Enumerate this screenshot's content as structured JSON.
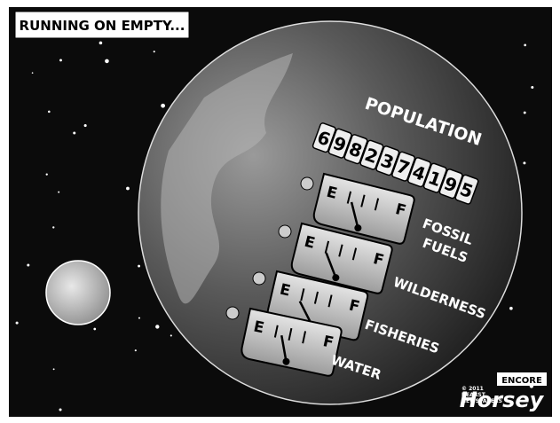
{
  "caption": "RUNNING ON EMPTY...",
  "population": {
    "label": "POPULATION",
    "digits": [
      "6",
      "9",
      "8",
      "2",
      "3",
      "7",
      "4",
      "1",
      "9",
      "5"
    ]
  },
  "gauges": [
    {
      "label_lines": [
        "FOSSIL",
        "FUELS"
      ],
      "empty": "E",
      "full": "F"
    },
    {
      "label_lines": [
        "WILDERNESS"
      ],
      "empty": "E",
      "full": "F"
    },
    {
      "label_lines": [
        "FISHERIES"
      ],
      "empty": "E",
      "full": "F"
    },
    {
      "label_lines": [
        "WATER"
      ],
      "empty": "E",
      "full": "F"
    }
  ],
  "signature": {
    "badge": "ENCORE",
    "name": "Horsey",
    "copyright_lines": [
      "© 2011",
      "HEARST",
      "NEWSPAPERS"
    ]
  }
}
